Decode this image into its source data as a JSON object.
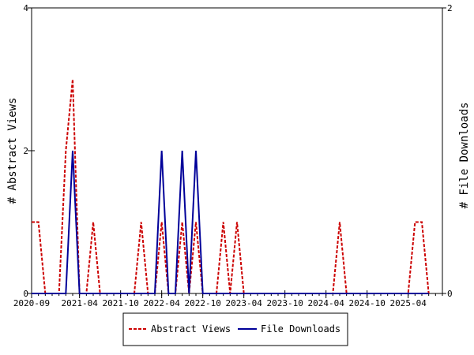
{
  "chart_data": {
    "type": "line",
    "x_ticks": [
      "2020-09",
      "2021-04",
      "2021-10",
      "2022-04",
      "2022-10",
      "2023-04",
      "2023-10",
      "2024-04",
      "2024-10",
      "2025-04"
    ],
    "x_range": [
      "2020-09",
      "2025-09"
    ],
    "y_left": {
      "label": "# Abstract Views",
      "range": [
        0,
        4
      ],
      "ticks": [
        "0",
        "2",
        "4"
      ]
    },
    "y_right": {
      "label": "# File Downloads",
      "range": [
        0,
        2
      ],
      "ticks": [
        "0",
        "2"
      ]
    },
    "grid": false,
    "legend_position": "bottom",
    "series": [
      {
        "name": "Abstract Views",
        "axis": "left",
        "color": "#cc0000",
        "style": "dashed",
        "points": [
          [
            "2020-09",
            1
          ],
          [
            "2020-10",
            1
          ],
          [
            "2020-11",
            0
          ],
          [
            "2020-12",
            0
          ],
          [
            "2021-01",
            0
          ],
          [
            "2021-02",
            2
          ],
          [
            "2021-03",
            3
          ],
          [
            "2021-04",
            0
          ],
          [
            "2021-05",
            0
          ],
          [
            "2021-06",
            1
          ],
          [
            "2021-07",
            0
          ],
          [
            "2021-08",
            0
          ],
          [
            "2021-09",
            0
          ],
          [
            "2021-10",
            0
          ],
          [
            "2021-11",
            0
          ],
          [
            "2021-12",
            0
          ],
          [
            "2022-01",
            1
          ],
          [
            "2022-02",
            0
          ],
          [
            "2022-03",
            0
          ],
          [
            "2022-04",
            1
          ],
          [
            "2022-05",
            0
          ],
          [
            "2022-06",
            0
          ],
          [
            "2022-07",
            1
          ],
          [
            "2022-08",
            0
          ],
          [
            "2022-09",
            1
          ],
          [
            "2022-10",
            0
          ],
          [
            "2022-11",
            0
          ],
          [
            "2022-12",
            0
          ],
          [
            "2023-01",
            1
          ],
          [
            "2023-02",
            0
          ],
          [
            "2023-03",
            1
          ],
          [
            "2023-04",
            0
          ],
          [
            "2023-05",
            0
          ],
          [
            "2023-06",
            0
          ],
          [
            "2023-07",
            0
          ],
          [
            "2023-08",
            0
          ],
          [
            "2023-09",
            0
          ],
          [
            "2023-10",
            0
          ],
          [
            "2023-11",
            0
          ],
          [
            "2023-12",
            0
          ],
          [
            "2024-01",
            0
          ],
          [
            "2024-02",
            0
          ],
          [
            "2024-03",
            0
          ],
          [
            "2024-04",
            0
          ],
          [
            "2024-05",
            0
          ],
          [
            "2024-06",
            1
          ],
          [
            "2024-07",
            0
          ],
          [
            "2024-08",
            0
          ],
          [
            "2024-09",
            0
          ],
          [
            "2024-10",
            0
          ],
          [
            "2024-11",
            0
          ],
          [
            "2024-12",
            0
          ],
          [
            "2025-01",
            0
          ],
          [
            "2025-02",
            0
          ],
          [
            "2025-03",
            0
          ],
          [
            "2025-04",
            0
          ],
          [
            "2025-05",
            1
          ],
          [
            "2025-06",
            1
          ],
          [
            "2025-07",
            0
          ]
        ]
      },
      {
        "name": "File Downloads",
        "axis": "right",
        "color": "#000099",
        "style": "solid",
        "points": [
          [
            "2020-09",
            0
          ],
          [
            "2020-10",
            0
          ],
          [
            "2020-11",
            0
          ],
          [
            "2020-12",
            0
          ],
          [
            "2021-01",
            0
          ],
          [
            "2021-02",
            0
          ],
          [
            "2021-03",
            1
          ],
          [
            "2021-04",
            0
          ],
          [
            "2021-05",
            0
          ],
          [
            "2021-06",
            0
          ],
          [
            "2021-07",
            0
          ],
          [
            "2021-08",
            0
          ],
          [
            "2021-09",
            0
          ],
          [
            "2021-10",
            0
          ],
          [
            "2021-11",
            0
          ],
          [
            "2021-12",
            0
          ],
          [
            "2022-01",
            0
          ],
          [
            "2022-02",
            0
          ],
          [
            "2022-03",
            0
          ],
          [
            "2022-04",
            1
          ],
          [
            "2022-05",
            0
          ],
          [
            "2022-06",
            0
          ],
          [
            "2022-07",
            1
          ],
          [
            "2022-08",
            0
          ],
          [
            "2022-09",
            1
          ],
          [
            "2022-10",
            0
          ],
          [
            "2022-11",
            0
          ],
          [
            "2022-12",
            0
          ],
          [
            "2023-01",
            0
          ],
          [
            "2023-02",
            0
          ],
          [
            "2023-03",
            0
          ],
          [
            "2023-04",
            0
          ],
          [
            "2023-05",
            0
          ],
          [
            "2023-06",
            0
          ],
          [
            "2023-07",
            0
          ],
          [
            "2023-08",
            0
          ],
          [
            "2023-09",
            0
          ],
          [
            "2023-10",
            0
          ],
          [
            "2023-11",
            0
          ],
          [
            "2023-12",
            0
          ],
          [
            "2024-01",
            0
          ],
          [
            "2024-02",
            0
          ],
          [
            "2024-03",
            0
          ],
          [
            "2024-04",
            0
          ],
          [
            "2024-05",
            0
          ],
          [
            "2024-06",
            0
          ],
          [
            "2024-07",
            0
          ],
          [
            "2024-08",
            0
          ],
          [
            "2024-09",
            0
          ],
          [
            "2024-10",
            0
          ],
          [
            "2024-11",
            0
          ],
          [
            "2024-12",
            0
          ],
          [
            "2025-01",
            0
          ],
          [
            "2025-02",
            0
          ],
          [
            "2025-03",
            0
          ],
          [
            "2025-04",
            0
          ],
          [
            "2025-05",
            0
          ],
          [
            "2025-06",
            0
          ],
          [
            "2025-07",
            0
          ]
        ]
      }
    ]
  }
}
